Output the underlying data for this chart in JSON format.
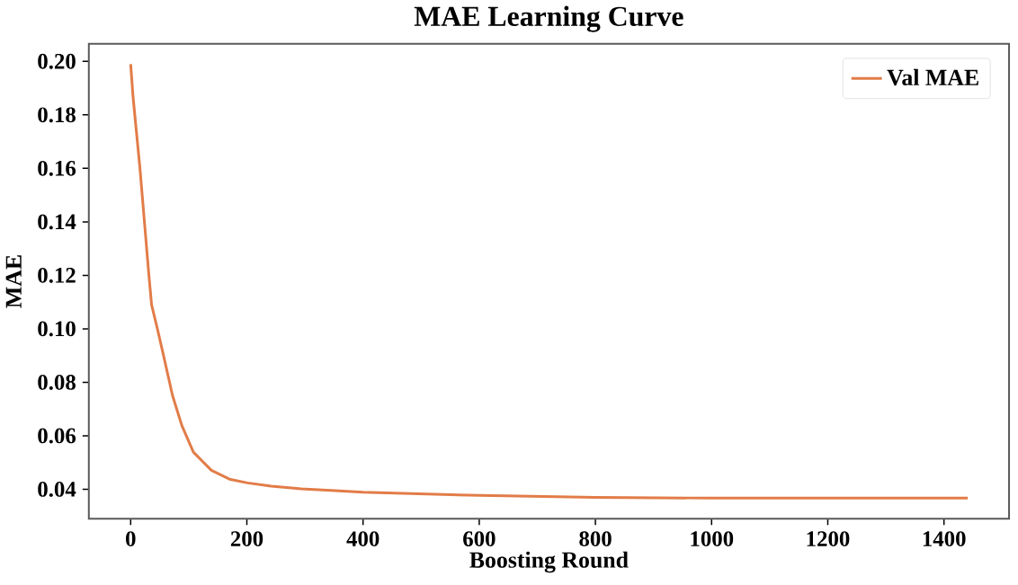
{
  "chart_data": {
    "type": "line",
    "title": "MAE Learning Curve",
    "xlabel": "Boosting Round",
    "ylabel": "MAE",
    "xlim": [
      -72,
      1512
    ],
    "ylim": [
      0.029,
      0.2066
    ],
    "xticks": [
      0,
      200,
      400,
      600,
      800,
      1000,
      1200,
      1400
    ],
    "yticks": [
      0.04,
      0.06,
      0.08,
      {
        "value": 0.1,
        "label": "0.10"
      },
      0.12,
      0.14,
      0.16,
      0.18,
      {
        "value": 0.2,
        "label": "0.20"
      }
    ],
    "legend": "top right",
    "grid": false,
    "series": [
      {
        "name": "Val MAE",
        "color": "#e27c48",
        "x": [
          0,
          4,
          16,
          31,
          36,
          46,
          57,
          72,
          88,
          108,
          139,
          170,
          201,
          242,
          294,
          345,
          400,
          600,
          800,
          1000,
          1200,
          1441
        ],
        "values": [
          0.199,
          0.187,
          0.16,
          0.121,
          0.109,
          0.1,
          0.0896,
          0.0751,
          0.0639,
          0.0539,
          0.0471,
          0.0438,
          0.0424,
          0.0412,
          0.0402,
          0.0396,
          0.0389,
          0.0377,
          0.037,
          0.0367,
          0.0367,
          0.0367
        ]
      }
    ]
  }
}
